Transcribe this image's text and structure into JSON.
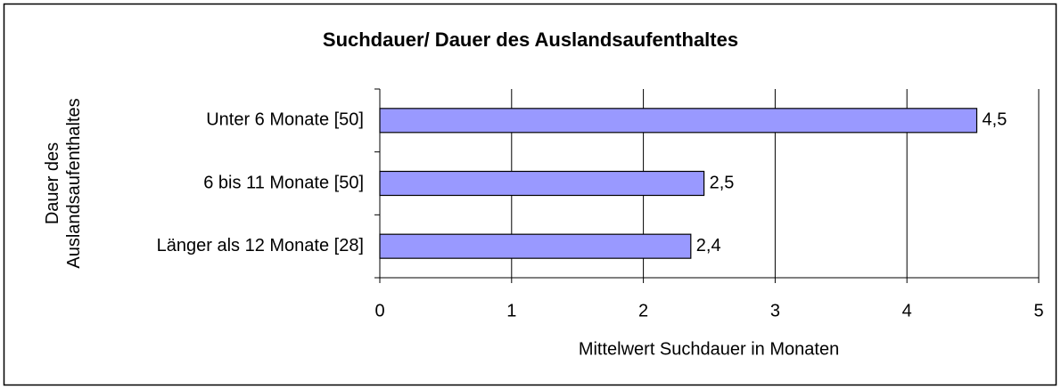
{
  "chart_data": {
    "type": "barh",
    "title": "Suchdauer/ Dauer des Auslandsaufenthaltes",
    "categories": [
      "Unter 6 Monate [50]",
      "6 bis 11 Monate [50]",
      "Länger als 12 Monate [28]"
    ],
    "values": [
      4.53,
      2.46,
      2.36
    ],
    "value_labels": [
      "4,5",
      "2,5",
      "2,4"
    ],
    "color": "#9999ff",
    "xlabel": "Mittelwert Suchdauer in Monaten",
    "ylabel": "Dauer des Auslandsaufenthaltes",
    "xlim": [
      0,
      5
    ],
    "xticks": [
      0,
      1,
      2,
      3,
      4,
      5
    ],
    "grid": true
  }
}
